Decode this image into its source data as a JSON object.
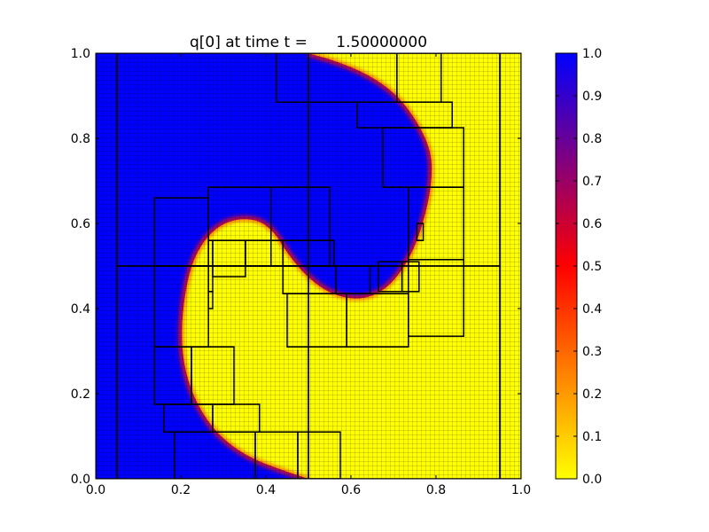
{
  "chart_data": {
    "type": "heatmap",
    "title": "q[0] at time t =      1.50000000",
    "xlabel": "",
    "ylabel": "",
    "xlim": [
      0.0,
      1.0
    ],
    "ylim": [
      0.0,
      1.0
    ],
    "x_ticks": [
      "0.0",
      "0.2",
      "0.4",
      "0.6",
      "0.8",
      "1.0"
    ],
    "y_ticks": [
      "0.0",
      "0.2",
      "0.4",
      "0.6",
      "0.8",
      "1.0"
    ],
    "colorbar": {
      "range": [
        0.0,
        1.0
      ],
      "ticks": [
        "0.0",
        "0.1",
        "0.2",
        "0.3",
        "0.4",
        "0.5",
        "0.6",
        "0.7",
        "0.8",
        "0.9",
        "1.0"
      ],
      "colormap": [
        "#ffff00",
        "#ff8000",
        "#ff0000",
        "#800080",
        "#0000ff"
      ]
    },
    "field": {
      "description": "swirled interface between q=1 (blue) and q=0 (yellow)",
      "high_color": "#0000ff",
      "low_color": "#ffff00",
      "interface_color": "#ff0000",
      "interface_path": [
        [
          0.5,
          1.0
        ],
        [
          0.57,
          0.98
        ],
        [
          0.64,
          0.95
        ],
        [
          0.7,
          0.91
        ],
        [
          0.75,
          0.85
        ],
        [
          0.79,
          0.77
        ],
        [
          0.79,
          0.69
        ],
        [
          0.77,
          0.6
        ],
        [
          0.74,
          0.52
        ],
        [
          0.69,
          0.45
        ],
        [
          0.63,
          0.42
        ],
        [
          0.56,
          0.43
        ],
        [
          0.5,
          0.47
        ],
        [
          0.45,
          0.53
        ],
        [
          0.42,
          0.58
        ],
        [
          0.38,
          0.61
        ],
        [
          0.32,
          0.61
        ],
        [
          0.27,
          0.58
        ],
        [
          0.23,
          0.52
        ],
        [
          0.21,
          0.44
        ],
        [
          0.2,
          0.34
        ],
        [
          0.21,
          0.25
        ],
        [
          0.24,
          0.17
        ],
        [
          0.29,
          0.1
        ],
        [
          0.36,
          0.05
        ],
        [
          0.44,
          0.02
        ],
        [
          0.5,
          0.0
        ]
      ]
    },
    "amr_patches": [
      [
        0.0,
        0.0,
        0.05,
        1.0
      ],
      [
        0.05,
        0.0,
        0.5,
        0.5
      ],
      [
        0.05,
        0.5,
        0.5,
        1.0
      ],
      [
        0.5,
        0.5,
        0.95,
        1.0
      ],
      [
        0.5,
        0.0,
        0.95,
        0.5
      ],
      [
        0.95,
        0.0,
        1.0,
        1.0
      ],
      [
        0.425,
        0.885,
        0.708,
        1.0
      ],
      [
        0.708,
        0.885,
        0.812,
        1.0
      ],
      [
        0.615,
        0.825,
        0.838,
        0.885
      ],
      [
        0.675,
        0.685,
        0.865,
        0.825
      ],
      [
        0.138,
        0.5,
        0.265,
        0.66
      ],
      [
        0.265,
        0.5,
        0.412,
        0.685
      ],
      [
        0.412,
        0.5,
        0.55,
        0.685
      ],
      [
        0.735,
        0.515,
        0.865,
        0.685
      ],
      [
        0.138,
        0.31,
        0.265,
        0.5
      ],
      [
        0.275,
        0.475,
        0.352,
        0.56
      ],
      [
        0.352,
        0.5,
        0.44,
        0.56
      ],
      [
        0.44,
        0.5,
        0.56,
        0.56
      ],
      [
        0.44,
        0.435,
        0.565,
        0.5
      ],
      [
        0.565,
        0.435,
        0.645,
        0.5
      ],
      [
        0.665,
        0.44,
        0.72,
        0.51
      ],
      [
        0.72,
        0.44,
        0.76,
        0.51
      ],
      [
        0.755,
        0.56,
        0.77,
        0.6
      ],
      [
        0.265,
        0.44,
        0.275,
        0.56
      ],
      [
        0.265,
        0.4,
        0.275,
        0.44
      ],
      [
        0.45,
        0.31,
        0.59,
        0.435
      ],
      [
        0.59,
        0.31,
        0.735,
        0.435
      ],
      [
        0.735,
        0.335,
        0.865,
        0.515
      ],
      [
        0.138,
        0.175,
        0.225,
        0.31
      ],
      [
        0.225,
        0.175,
        0.325,
        0.31
      ],
      [
        0.16,
        0.11,
        0.275,
        0.175
      ],
      [
        0.275,
        0.11,
        0.385,
        0.175
      ],
      [
        0.185,
        0.0,
        0.375,
        0.11
      ],
      [
        0.375,
        0.0,
        0.475,
        0.11
      ],
      [
        0.475,
        0.0,
        0.575,
        0.11
      ]
    ]
  }
}
